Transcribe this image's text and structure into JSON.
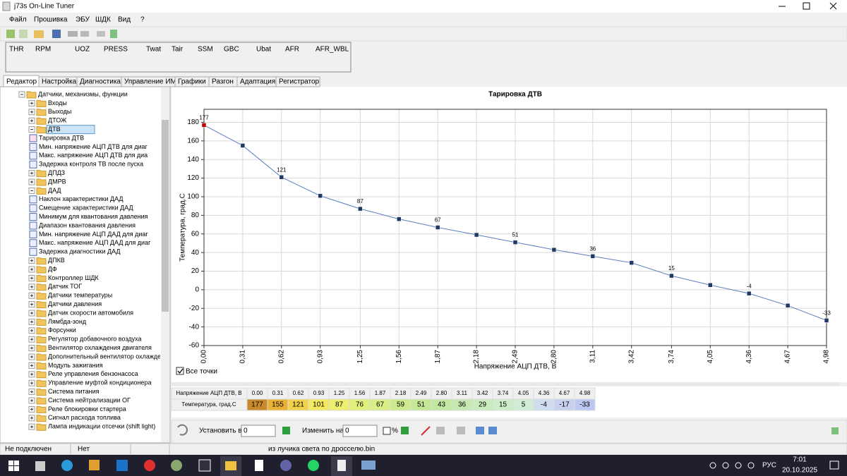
{
  "window": {
    "title": "j73s On-Line Tuner"
  },
  "menu": [
    "Файл",
    "Прошивка",
    "ЭБУ",
    "ШДК",
    "Вид",
    "?"
  ],
  "gauges": [
    "THR",
    "RPM",
    "UOZ",
    "PRESS",
    "Twat",
    "Tair",
    "SSM",
    "GBC",
    "Ubat",
    "AFR",
    "AFR_WBL"
  ],
  "tabs": [
    "Редактор",
    "Настройка",
    "Диагностика",
    "Управление ИМ",
    "Графики",
    "Разгон",
    "Адаптация",
    "Регистратор"
  ],
  "active_tab": 0,
  "tree": {
    "selected": 4,
    "items": [
      {
        "label": "Датчики, механизмы, функции",
        "level": 0,
        "kind": "folder",
        "expanded": true
      },
      {
        "label": "Входы",
        "level": 1,
        "kind": "folder",
        "expanded": false
      },
      {
        "label": "Выходы",
        "level": 1,
        "kind": "folder",
        "expanded": false
      },
      {
        "label": "ДТОЖ",
        "level": 1,
        "kind": "folder",
        "expanded": false
      },
      {
        "label": "ДТВ",
        "level": 1,
        "kind": "folder",
        "expanded": true
      },
      {
        "label": "Тарировка ДТВ",
        "level": 2,
        "kind": "chart"
      },
      {
        "label": "Мин. напряжение АЦП ДТВ для диаг",
        "level": 2,
        "kind": "param"
      },
      {
        "label": "Макс. напряжение АЦП ДТВ для диа",
        "level": 2,
        "kind": "param"
      },
      {
        "label": "Задержка контроля ТВ после пуска",
        "level": 2,
        "kind": "param"
      },
      {
        "label": "ДПДЗ",
        "level": 1,
        "kind": "folder",
        "expanded": false
      },
      {
        "label": "ДМРВ",
        "level": 1,
        "kind": "folder",
        "expanded": false
      },
      {
        "label": "ДАД",
        "level": 1,
        "kind": "folder",
        "expanded": true
      },
      {
        "label": "Наклон характеристики ДАД",
        "level": 2,
        "kind": "param"
      },
      {
        "label": "Смещение характеристики ДАД",
        "level": 2,
        "kind": "param"
      },
      {
        "label": "Минимум для квантования давления",
        "level": 2,
        "kind": "param"
      },
      {
        "label": "Диапазон квантования давления",
        "level": 2,
        "kind": "param"
      },
      {
        "label": "Мин. напряжение АЦП ДАД для диаг",
        "level": 2,
        "kind": "param"
      },
      {
        "label": "Макс. напряжение АЦП ДАД для диаг",
        "level": 2,
        "kind": "param"
      },
      {
        "label": "Задержка диагностики ДАД",
        "level": 2,
        "kind": "param"
      },
      {
        "label": "ДПКВ",
        "level": 1,
        "kind": "folder",
        "expanded": false
      },
      {
        "label": "ДФ",
        "level": 1,
        "kind": "folder",
        "expanded": false
      },
      {
        "label": "Контроллер ШДК",
        "level": 1,
        "kind": "folder",
        "expanded": false
      },
      {
        "label": "Датчик ТОГ",
        "level": 1,
        "kind": "folder",
        "expanded": false
      },
      {
        "label": "Датчики температуры",
        "level": 1,
        "kind": "folder",
        "expanded": false
      },
      {
        "label": "Датчики давления",
        "level": 1,
        "kind": "folder",
        "expanded": false
      },
      {
        "label": "Датчик скорости автомобиля",
        "level": 1,
        "kind": "folder",
        "expanded": false
      },
      {
        "label": "Лямбда-зонд",
        "level": 1,
        "kind": "folder",
        "expanded": false
      },
      {
        "label": "Форсунки",
        "level": 1,
        "kind": "folder",
        "expanded": false
      },
      {
        "label": "Регулятор добавочного воздуха",
        "level": 1,
        "kind": "folder",
        "expanded": false
      },
      {
        "label": "Вентилятор охлаждения двигателя",
        "level": 1,
        "kind": "folder",
        "expanded": false
      },
      {
        "label": "Дополнительный вентилятор охлаждени",
        "level": 1,
        "kind": "folder",
        "expanded": false
      },
      {
        "label": "Модуль зажигания",
        "level": 1,
        "kind": "folder",
        "expanded": false
      },
      {
        "label": "Реле управления бензонасоса",
        "level": 1,
        "kind": "folder",
        "expanded": false
      },
      {
        "label": "Управление муфтой кондиционера",
        "level": 1,
        "kind": "folder",
        "expanded": false
      },
      {
        "label": "Система питания",
        "level": 1,
        "kind": "folder",
        "expanded": false
      },
      {
        "label": "Система нейтрализации ОГ",
        "level": 1,
        "kind": "folder",
        "expanded": false
      },
      {
        "label": "Реле блокировки стартера",
        "level": 1,
        "kind": "folder",
        "expanded": false
      },
      {
        "label": "Сигнал расхода топлива",
        "level": 1,
        "kind": "folder",
        "expanded": false
      },
      {
        "label": "Лампа индикации отсечки (shift light)",
        "level": 1,
        "kind": "folder",
        "expanded": false
      }
    ]
  },
  "chart_data": {
    "type": "line",
    "title": "Тарировка ДТВ",
    "x_label": "Напряжение АЦП ДТВ, В",
    "y_label": "Температура, град.С",
    "x": [
      0.0,
      0.31,
      0.62,
      0.93,
      1.25,
      1.56,
      1.87,
      2.18,
      2.49,
      2.8,
      3.11,
      3.42,
      3.74,
      4.05,
      4.36,
      4.67,
      4.98
    ],
    "values": [
      177,
      155,
      121,
      101,
      87,
      76,
      67,
      59,
      51,
      43,
      36,
      29,
      15,
      5,
      -4,
      -17,
      -33
    ],
    "color": "#5b7fbf",
    "marker_color": "#1f3864",
    "selected_color": "#c00000",
    "selected_point": 0,
    "label_step": 2,
    "grid": true,
    "xlim": [
      0,
      4.98
    ],
    "ylim": [
      -60,
      194
    ],
    "xticks": [
      {
        "value": 0.0,
        "label": "0,00"
      },
      {
        "value": 0.31,
        "label": "0,31"
      },
      {
        "value": 0.62,
        "label": "0,62"
      },
      {
        "value": 0.93,
        "label": "0,93"
      },
      {
        "value": 1.25,
        "label": "1,25"
      },
      {
        "value": 1.56,
        "label": "1,56"
      },
      {
        "value": 1.87,
        "label": "1,87"
      },
      {
        "value": 2.18,
        "label": "2,18"
      },
      {
        "value": 2.49,
        "label": "2,49"
      },
      {
        "value": 2.8,
        "label": "2,80"
      },
      {
        "value": 3.11,
        "label": "3,11"
      },
      {
        "value": 3.42,
        "label": "3,42"
      },
      {
        "value": 3.74,
        "label": "3,74"
      },
      {
        "value": 4.05,
        "label": "4,05"
      },
      {
        "value": 4.36,
        "label": "4,36"
      },
      {
        "value": 4.67,
        "label": "4,67"
      },
      {
        "value": 4.98,
        "label": "4,98"
      }
    ],
    "yticks": [
      -60,
      -40,
      -20,
      0,
      20,
      40,
      60,
      80,
      100,
      120,
      140,
      160,
      180
    ]
  },
  "checkbox": {
    "label": "Все точки",
    "checked": true
  },
  "table": {
    "header_label": "Напряжение АЦП ДТВ, В",
    "row_label": "Температура, град.С",
    "header_cells": [
      "0.00",
      "0.31",
      "0.62",
      "0.93",
      "1.25",
      "1.56",
      "1.87",
      "2.18",
      "2.49",
      "2.80",
      "3.11",
      "3.42",
      "3.74",
      "4.05",
      "4.36",
      "4.67",
      "4.98"
    ],
    "cell_colors": [
      "#c98a2c",
      "#e9b236",
      "#f2d24c",
      "#f4e95e",
      "#edf06e",
      "#e1f07c",
      "#d8ef88",
      "#cdeb8e",
      "#c5e894",
      "#c2e8a2",
      "#c5e9b0",
      "#c9ebbe",
      "#cdecca",
      "#d0ebd6",
      "#cfdcee",
      "#c6d1f0",
      "#bcc7f2"
    ]
  },
  "toolbar": {
    "set_label": "Установить в",
    "set_value": 0,
    "change_label": "Изменить на",
    "change_value": 0,
    "percent": "%"
  },
  "status": [
    "Не подключен",
    "Нет",
    "из лучика света по дросселю.bin"
  ],
  "tray": {
    "language": "РУС",
    "time": "7:01",
    "date": "20.10.2025"
  }
}
